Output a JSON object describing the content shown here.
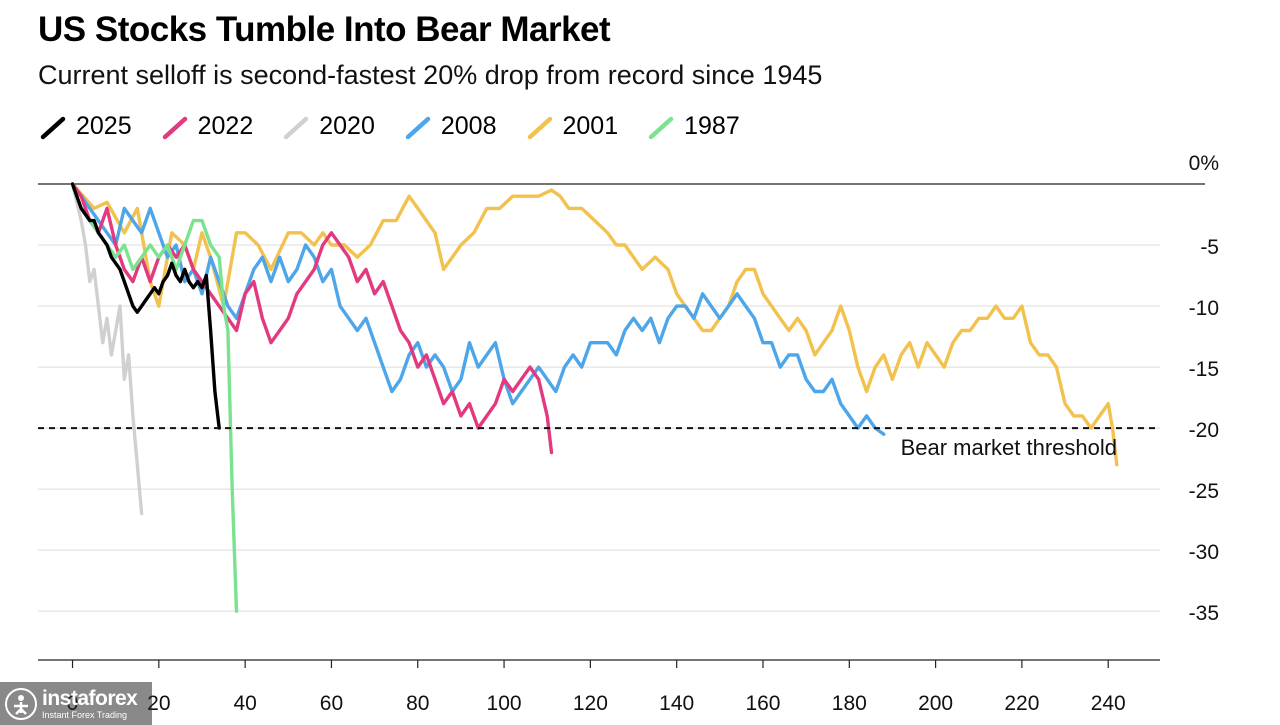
{
  "chart_data": {
    "type": "line",
    "title": "US Stocks Tumble Into Bear Market",
    "subtitle": "Current selloff is second-fastest 20% drop from record since 1945",
    "xlabel": "",
    "ylabel": "",
    "xlim": [
      -8,
      252
    ],
    "ylim": [
      -38,
      1
    ],
    "x_ticks": [
      "0",
      "20",
      "40",
      "60",
      "80",
      "100",
      "120",
      "140",
      "160",
      "180",
      "200",
      "220",
      "240"
    ],
    "y_ticks": [
      "0%",
      "-5",
      "-10",
      "-15",
      "-20",
      "-25",
      "-30",
      "-35"
    ],
    "threshold": {
      "value": -20,
      "label": "Bear market threshold"
    },
    "series": [
      {
        "name": "2001",
        "color": "#f2c14e",
        "x": [
          0,
          5,
          8,
          12,
          15,
          18,
          20,
          23,
          26,
          28,
          30,
          32,
          35,
          38,
          40,
          43,
          46,
          50,
          53,
          56,
          58,
          60,
          63,
          66,
          69,
          72,
          75,
          78,
          80,
          82,
          84,
          86,
          88,
          90,
          93,
          96,
          99,
          102,
          105,
          108,
          111,
          113,
          115,
          118,
          121,
          124,
          126,
          128,
          130,
          132,
          135,
          138,
          140,
          142,
          144,
          146,
          148,
          150,
          152,
          154,
          156,
          158,
          160,
          162,
          164,
          166,
          168,
          170,
          172,
          174,
          176,
          178,
          180,
          182,
          184,
          186,
          188,
          190,
          192,
          194,
          196,
          198,
          200,
          202,
          204,
          206,
          208,
          210,
          212,
          214,
          216,
          218,
          220,
          222,
          224,
          226,
          228,
          230,
          232,
          234,
          236,
          238,
          240,
          241,
          242
        ],
        "y": [
          0,
          -2,
          -1.5,
          -4,
          -2,
          -8,
          -10,
          -4,
          -5,
          -7,
          -4,
          -6,
          -10,
          -4,
          -4,
          -5,
          -7,
          -4,
          -4,
          -5,
          -4,
          -5,
          -5,
          -6,
          -5,
          -3,
          -3,
          -1,
          -2,
          -3,
          -4,
          -7,
          -6,
          -5,
          -4,
          -2,
          -2,
          -1,
          -1,
          -1,
          -0.5,
          -1,
          -2,
          -2,
          -3,
          -4,
          -5,
          -5,
          -6,
          -7,
          -6,
          -7,
          -9,
          -10,
          -11,
          -12,
          -12,
          -11,
          -10,
          -8,
          -7,
          -7,
          -9,
          -10,
          -11,
          -12,
          -11,
          -12,
          -14,
          -13,
          -12,
          -10,
          -12,
          -15,
          -17,
          -15,
          -14,
          -16,
          -14,
          -13,
          -15,
          -13,
          -14,
          -15,
          -13,
          -12,
          -12,
          -11,
          -11,
          -10,
          -11,
          -11,
          -10,
          -13,
          -14,
          -14,
          -15,
          -18,
          -19,
          -19,
          -20,
          -19,
          -18,
          -20,
          -23
        ]
      },
      {
        "name": "2008",
        "color": "#4da6ea",
        "x": [
          0,
          2,
          4,
          6,
          8,
          10,
          12,
          14,
          16,
          18,
          20,
          22,
          24,
          26,
          28,
          30,
          32,
          34,
          36,
          38,
          40,
          42,
          44,
          46,
          48,
          50,
          52,
          54,
          56,
          58,
          60,
          62,
          64,
          66,
          68,
          70,
          72,
          74,
          76,
          78,
          80,
          82,
          84,
          86,
          88,
          90,
          92,
          94,
          96,
          98,
          100,
          102,
          104,
          106,
          108,
          110,
          112,
          114,
          116,
          118,
          120,
          122,
          124,
          126,
          128,
          130,
          132,
          134,
          136,
          138,
          140,
          142,
          144,
          146,
          148,
          150,
          152,
          154,
          156,
          158,
          160,
          162,
          164,
          166,
          168,
          170,
          172,
          174,
          176,
          178,
          180,
          182,
          184,
          186,
          188
        ],
        "y": [
          0,
          -1,
          -2,
          -3,
          -4,
          -5,
          -2,
          -3,
          -4,
          -2,
          -4,
          -6,
          -5,
          -8,
          -7,
          -9,
          -6,
          -8,
          -10,
          -11,
          -9,
          -7,
          -6,
          -8,
          -6,
          -8,
          -7,
          -5,
          -6,
          -8,
          -7,
          -10,
          -11,
          -12,
          -11,
          -13,
          -15,
          -17,
          -16,
          -14,
          -13,
          -15,
          -14,
          -15,
          -17,
          -16,
          -13,
          -15,
          -14,
          -13,
          -16,
          -18,
          -17,
          -16,
          -15,
          -16,
          -17,
          -15,
          -14,
          -15,
          -13,
          -13,
          -13,
          -14,
          -12,
          -11,
          -12,
          -11,
          -13,
          -11,
          -10,
          -10,
          -11,
          -9,
          -10,
          -11,
          -10,
          -9,
          -10,
          -11,
          -13,
          -13,
          -15,
          -14,
          -14,
          -16,
          -17,
          -17,
          -16,
          -18,
          -19,
          -20,
          -19,
          -20,
          -20.5
        ]
      },
      {
        "name": "2022",
        "color": "#e3397e",
        "x": [
          0,
          2,
          4,
          6,
          8,
          10,
          12,
          14,
          16,
          18,
          20,
          22,
          24,
          26,
          28,
          30,
          32,
          34,
          36,
          38,
          40,
          42,
          44,
          46,
          48,
          50,
          52,
          54,
          56,
          58,
          60,
          62,
          64,
          66,
          68,
          70,
          72,
          74,
          76,
          78,
          80,
          82,
          84,
          86,
          88,
          90,
          92,
          94,
          96,
          98,
          100,
          102,
          104,
          106,
          108,
          110,
          111
        ],
        "y": [
          0,
          -1,
          -3,
          -4,
          -2,
          -5,
          -7,
          -8,
          -6,
          -8,
          -6,
          -5,
          -6,
          -5,
          -7,
          -8,
          -9,
          -10,
          -11,
          -12,
          -9,
          -8,
          -11,
          -13,
          -12,
          -11,
          -9,
          -8,
          -7,
          -5,
          -4,
          -5,
          -6,
          -8,
          -7,
          -9,
          -8,
          -10,
          -12,
          -13,
          -15,
          -14,
          -16,
          -18,
          -17,
          -19,
          -18,
          -20,
          -19,
          -18,
          -16,
          -17,
          -16,
          -15,
          -16,
          -19,
          -22
        ]
      },
      {
        "name": "1987",
        "color": "#7be38f",
        "x": [
          0,
          2,
          4,
          6,
          8,
          10,
          12,
          14,
          16,
          18,
          20,
          22,
          24,
          26,
          28,
          30,
          32,
          34,
          35,
          36,
          37,
          38
        ],
        "y": [
          0,
          -2,
          -3,
          -4,
          -5,
          -6,
          -5,
          -7,
          -6,
          -5,
          -6,
          -5,
          -7,
          -5,
          -3,
          -3,
          -5,
          -6,
          -10,
          -12,
          -25,
          -35
        ]
      },
      {
        "name": "2020",
        "color": "#d0d0d0",
        "x": [
          0,
          2,
          3,
          4,
          5,
          6,
          7,
          8,
          9,
          10,
          11,
          12,
          13,
          14,
          15,
          16
        ],
        "y": [
          0,
          -3,
          -5,
          -8,
          -7,
          -10,
          -13,
          -11,
          -14,
          -12,
          -10,
          -16,
          -14,
          -19,
          -23,
          -27
        ]
      },
      {
        "name": "2025",
        "color": "#000000",
        "x": [
          0,
          1,
          2,
          3,
          4,
          5,
          6,
          7,
          8,
          9,
          10,
          11,
          12,
          13,
          14,
          15,
          16,
          17,
          18,
          19,
          20,
          21,
          22,
          23,
          24,
          25,
          26,
          27,
          28,
          29,
          30,
          31,
          32,
          33,
          34
        ],
        "y": [
          0,
          -1,
          -2,
          -2.5,
          -3,
          -3,
          -4,
          -4.5,
          -5,
          -6,
          -6.5,
          -7,
          -8,
          -9,
          -10,
          -10.5,
          -10,
          -9.5,
          -9,
          -8.5,
          -9,
          -8,
          -7.5,
          -6.5,
          -7.5,
          -8,
          -7,
          -8,
          -8.5,
          -8,
          -8.5,
          -7.5,
          -12,
          -17,
          -20
        ]
      }
    ]
  },
  "legend": [
    "2025",
    "2022",
    "2020",
    "2008",
    "2001",
    "1987"
  ],
  "watermark": {
    "brand": "instaforex",
    "tagline": "Instant Forex Trading"
  }
}
